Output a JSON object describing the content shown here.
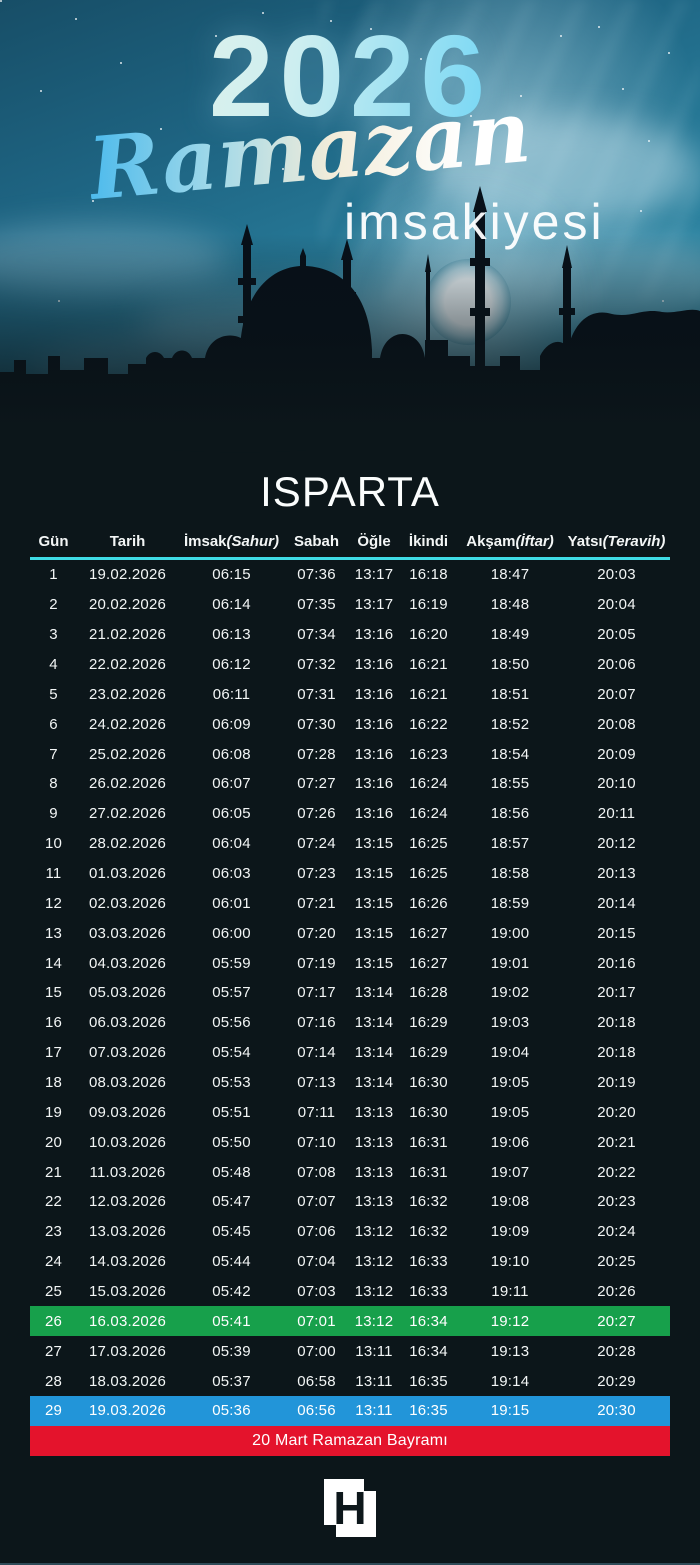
{
  "hero": {
    "year": "2026",
    "script_title": "Ramazan",
    "subtitle": "imsakiyesi"
  },
  "city": "ISPARTA",
  "table": {
    "columns": [
      {
        "label": "Gün",
        "suffix": ""
      },
      {
        "label": "Tarih",
        "suffix": ""
      },
      {
        "label": "İmsak",
        "suffix": "(Sahur)"
      },
      {
        "label": "Sabah",
        "suffix": ""
      },
      {
        "label": "Öğle",
        "suffix": ""
      },
      {
        "label": "İkindi",
        "suffix": ""
      },
      {
        "label": "Akşam",
        "suffix": "(İftar)"
      },
      {
        "label": "Yatsı",
        "suffix": "(Teravih)"
      }
    ],
    "rows": [
      {
        "gun": "1",
        "tarih": "19.02.2026",
        "imsak": "06:15",
        "sabah": "07:36",
        "ogle": "13:17",
        "ikindi": "16:18",
        "aksam": "18:47",
        "yatsi": "20:03",
        "highlight": ""
      },
      {
        "gun": "2",
        "tarih": "20.02.2026",
        "imsak": "06:14",
        "sabah": "07:35",
        "ogle": "13:17",
        "ikindi": "16:19",
        "aksam": "18:48",
        "yatsi": "20:04",
        "highlight": ""
      },
      {
        "gun": "3",
        "tarih": "21.02.2026",
        "imsak": "06:13",
        "sabah": "07:34",
        "ogle": "13:16",
        "ikindi": "16:20",
        "aksam": "18:49",
        "yatsi": "20:05",
        "highlight": ""
      },
      {
        "gun": "4",
        "tarih": "22.02.2026",
        "imsak": "06:12",
        "sabah": "07:32",
        "ogle": "13:16",
        "ikindi": "16:21",
        "aksam": "18:50",
        "yatsi": "20:06",
        "highlight": ""
      },
      {
        "gun": "5",
        "tarih": "23.02.2026",
        "imsak": "06:11",
        "sabah": "07:31",
        "ogle": "13:16",
        "ikindi": "16:21",
        "aksam": "18:51",
        "yatsi": "20:07",
        "highlight": ""
      },
      {
        "gun": "6",
        "tarih": "24.02.2026",
        "imsak": "06:09",
        "sabah": "07:30",
        "ogle": "13:16",
        "ikindi": "16:22",
        "aksam": "18:52",
        "yatsi": "20:08",
        "highlight": ""
      },
      {
        "gun": "7",
        "tarih": "25.02.2026",
        "imsak": "06:08",
        "sabah": "07:28",
        "ogle": "13:16",
        "ikindi": "16:23",
        "aksam": "18:54",
        "yatsi": "20:09",
        "highlight": ""
      },
      {
        "gun": "8",
        "tarih": "26.02.2026",
        "imsak": "06:07",
        "sabah": "07:27",
        "ogle": "13:16",
        "ikindi": "16:24",
        "aksam": "18:55",
        "yatsi": "20:10",
        "highlight": ""
      },
      {
        "gun": "9",
        "tarih": "27.02.2026",
        "imsak": "06:05",
        "sabah": "07:26",
        "ogle": "13:16",
        "ikindi": "16:24",
        "aksam": "18:56",
        "yatsi": "20:11",
        "highlight": ""
      },
      {
        "gun": "10",
        "tarih": "28.02.2026",
        "imsak": "06:04",
        "sabah": "07:24",
        "ogle": "13:15",
        "ikindi": "16:25",
        "aksam": "18:57",
        "yatsi": "20:12",
        "highlight": ""
      },
      {
        "gun": "11",
        "tarih": "01.03.2026",
        "imsak": "06:03",
        "sabah": "07:23",
        "ogle": "13:15",
        "ikindi": "16:25",
        "aksam": "18:58",
        "yatsi": "20:13",
        "highlight": ""
      },
      {
        "gun": "12",
        "tarih": "02.03.2026",
        "imsak": "06:01",
        "sabah": "07:21",
        "ogle": "13:15",
        "ikindi": "16:26",
        "aksam": "18:59",
        "yatsi": "20:14",
        "highlight": ""
      },
      {
        "gun": "13",
        "tarih": "03.03.2026",
        "imsak": "06:00",
        "sabah": "07:20",
        "ogle": "13:15",
        "ikindi": "16:27",
        "aksam": "19:00",
        "yatsi": "20:15",
        "highlight": ""
      },
      {
        "gun": "14",
        "tarih": "04.03.2026",
        "imsak": "05:59",
        "sabah": "07:19",
        "ogle": "13:15",
        "ikindi": "16:27",
        "aksam": "19:01",
        "yatsi": "20:16",
        "highlight": ""
      },
      {
        "gun": "15",
        "tarih": "05.03.2026",
        "imsak": "05:57",
        "sabah": "07:17",
        "ogle": "13:14",
        "ikindi": "16:28",
        "aksam": "19:02",
        "yatsi": "20:17",
        "highlight": ""
      },
      {
        "gun": "16",
        "tarih": "06.03.2026",
        "imsak": "05:56",
        "sabah": "07:16",
        "ogle": "13:14",
        "ikindi": "16:29",
        "aksam": "19:03",
        "yatsi": "20:18",
        "highlight": ""
      },
      {
        "gun": "17",
        "tarih": "07.03.2026",
        "imsak": "05:54",
        "sabah": "07:14",
        "ogle": "13:14",
        "ikindi": "16:29",
        "aksam": "19:04",
        "yatsi": "20:18",
        "highlight": ""
      },
      {
        "gun": "18",
        "tarih": "08.03.2026",
        "imsak": "05:53",
        "sabah": "07:13",
        "ogle": "13:14",
        "ikindi": "16:30",
        "aksam": "19:05",
        "yatsi": "20:19",
        "highlight": ""
      },
      {
        "gun": "19",
        "tarih": "09.03.2026",
        "imsak": "05:51",
        "sabah": "07:11",
        "ogle": "13:13",
        "ikindi": "16:30",
        "aksam": "19:05",
        "yatsi": "20:20",
        "highlight": ""
      },
      {
        "gun": "20",
        "tarih": "10.03.2026",
        "imsak": "05:50",
        "sabah": "07:10",
        "ogle": "13:13",
        "ikindi": "16:31",
        "aksam": "19:06",
        "yatsi": "20:21",
        "highlight": ""
      },
      {
        "gun": "21",
        "tarih": "11.03.2026",
        "imsak": "05:48",
        "sabah": "07:08",
        "ogle": "13:13",
        "ikindi": "16:31",
        "aksam": "19:07",
        "yatsi": "20:22",
        "highlight": ""
      },
      {
        "gun": "22",
        "tarih": "12.03.2026",
        "imsak": "05:47",
        "sabah": "07:07",
        "ogle": "13:13",
        "ikindi": "16:32",
        "aksam": "19:08",
        "yatsi": "20:23",
        "highlight": ""
      },
      {
        "gun": "23",
        "tarih": "13.03.2026",
        "imsak": "05:45",
        "sabah": "07:06",
        "ogle": "13:12",
        "ikindi": "16:32",
        "aksam": "19:09",
        "yatsi": "20:24",
        "highlight": ""
      },
      {
        "gun": "24",
        "tarih": "14.03.2026",
        "imsak": "05:44",
        "sabah": "07:04",
        "ogle": "13:12",
        "ikindi": "16:33",
        "aksam": "19:10",
        "yatsi": "20:25",
        "highlight": ""
      },
      {
        "gun": "25",
        "tarih": "15.03.2026",
        "imsak": "05:42",
        "sabah": "07:03",
        "ogle": "13:12",
        "ikindi": "16:33",
        "aksam": "19:11",
        "yatsi": "20:26",
        "highlight": ""
      },
      {
        "gun": "26",
        "tarih": "16.03.2026",
        "imsak": "05:41",
        "sabah": "07:01",
        "ogle": "13:12",
        "ikindi": "16:34",
        "aksam": "19:12",
        "yatsi": "20:27",
        "highlight": "green"
      },
      {
        "gun": "27",
        "tarih": "17.03.2026",
        "imsak": "05:39",
        "sabah": "07:00",
        "ogle": "13:11",
        "ikindi": "16:34",
        "aksam": "19:13",
        "yatsi": "20:28",
        "highlight": ""
      },
      {
        "gun": "28",
        "tarih": "18.03.2026",
        "imsak": "05:37",
        "sabah": "06:58",
        "ogle": "13:11",
        "ikindi": "16:35",
        "aksam": "19:14",
        "yatsi": "20:29",
        "highlight": ""
      },
      {
        "gun": "29",
        "tarih": "19.03.2026",
        "imsak": "05:36",
        "sabah": "06:56",
        "ogle": "13:11",
        "ikindi": "16:35",
        "aksam": "19:15",
        "yatsi": "20:30",
        "highlight": "blue"
      }
    ]
  },
  "banner": {
    "text": "20 Mart Ramazan Bayramı"
  },
  "logo": {
    "letter": "H"
  },
  "colors": {
    "green": "#17a04b",
    "blue": "#2295d9",
    "red": "#e4132c",
    "line": "#3fdce6"
  }
}
